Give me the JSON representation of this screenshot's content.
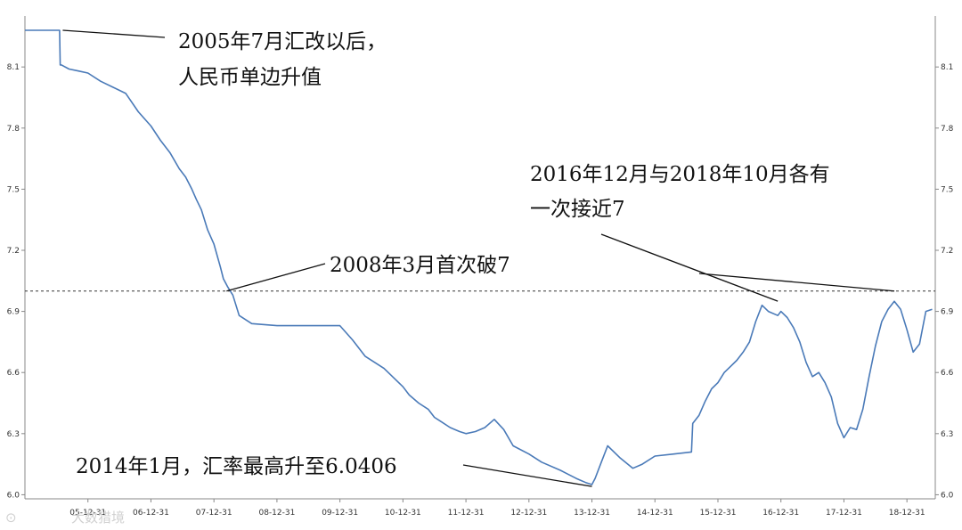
{
  "chart_data": {
    "type": "line",
    "series": [
      {
        "color": "#4a7ab8",
        "x": [
          2005.0,
          2005.55,
          2005.56,
          2005.58,
          2005.7,
          2005.85,
          2006.0,
          2006.2,
          2006.4,
          2006.6,
          2006.8,
          2007.0,
          2007.15,
          2007.3,
          2007.45,
          2007.55,
          2007.65,
          2007.72,
          2007.8,
          2007.9,
          2008.0,
          2008.1,
          2008.15,
          2008.22,
          2008.3,
          2008.4,
          2008.6,
          2009.0,
          2009.5,
          2009.9,
          2010.0,
          2010.2,
          2010.4,
          2010.7,
          2011.0,
          2011.1,
          2011.25,
          2011.4,
          2011.5,
          2011.6,
          2011.75,
          2011.9,
          2012.0,
          2012.15,
          2012.3,
          2012.45,
          2012.6,
          2012.75,
          2013.0,
          2013.2,
          2013.5,
          2013.75,
          2013.9,
          2014.0,
          2014.05,
          2014.15,
          2014.25,
          2014.45,
          2014.65,
          2014.8,
          2015.0,
          2015.3,
          2015.58,
          2015.6,
          2015.7,
          2015.8,
          2015.9,
          2016.0,
          2016.1,
          2016.2,
          2016.3,
          2016.4,
          2016.5,
          2016.6,
          2016.7,
          2016.8,
          2016.95,
          2017.0,
          2017.1,
          2017.2,
          2017.3,
          2017.4,
          2017.5,
          2017.6,
          2017.7,
          2017.8,
          2017.9,
          2018.0,
          2018.1,
          2018.2,
          2018.3,
          2018.4,
          2018.5,
          2018.6,
          2018.7,
          2018.8,
          2018.9,
          2019.0,
          2019.1,
          2019.2,
          2019.3,
          2019.4
        ],
        "y": [
          8.28,
          8.28,
          8.11,
          8.11,
          8.09,
          8.08,
          8.07,
          8.03,
          8.0,
          7.97,
          7.88,
          7.81,
          7.74,
          7.68,
          7.6,
          7.56,
          7.5,
          7.45,
          7.4,
          7.3,
          7.23,
          7.12,
          7.06,
          7.02,
          6.98,
          6.88,
          6.84,
          6.83,
          6.83,
          6.83,
          6.83,
          6.76,
          6.68,
          6.62,
          6.53,
          6.49,
          6.45,
          6.42,
          6.38,
          6.36,
          6.33,
          6.31,
          6.3,
          6.31,
          6.33,
          6.37,
          6.32,
          6.24,
          6.2,
          6.16,
          6.12,
          6.08,
          6.06,
          6.05,
          6.08,
          6.16,
          6.24,
          6.18,
          6.13,
          6.15,
          6.19,
          6.2,
          6.21,
          6.35,
          6.39,
          6.46,
          6.52,
          6.55,
          6.6,
          6.63,
          6.66,
          6.7,
          6.75,
          6.85,
          6.93,
          6.9,
          6.88,
          6.9,
          6.87,
          6.82,
          6.75,
          6.65,
          6.58,
          6.6,
          6.55,
          6.48,
          6.35,
          6.28,
          6.33,
          6.32,
          6.42,
          6.58,
          6.73,
          6.85,
          6.91,
          6.95,
          6.91,
          6.81,
          6.7,
          6.74,
          6.9,
          6.91
        ]
      }
    ],
    "xtick_labels": [
      "05-12-31",
      "06-12-31",
      "07-12-31",
      "08-12-31",
      "09-12-31",
      "10-12-31",
      "11-12-31",
      "12-12-31",
      "13-12-31",
      "14-12-31",
      "15-12-31",
      "16-12-31",
      "17-12-31",
      "18-12-31"
    ],
    "xtick_values": [
      2006.0,
      2007.0,
      2008.0,
      2009.0,
      2010.0,
      2011.0,
      2012.0,
      2013.0,
      2014.0,
      2015.0,
      2016.0,
      2017.0,
      2018.0,
      2019.0
    ],
    "xlim": [
      2005.0,
      2019.45
    ],
    "yticks": [
      6.0,
      6.3,
      6.6,
      6.9,
      7.2,
      7.5,
      7.8,
      8.1
    ],
    "ylim": [
      5.98,
      8.35
    ],
    "reference_line": {
      "y": 7.0,
      "style": "dashed",
      "color": "#333333"
    },
    "grid": false,
    "legend": "none",
    "annotations": [
      {
        "lines": [
          "2005年7月汇改以后，",
          "人民币单边升值"
        ],
        "point": [
          2005.6,
          8.28
        ]
      },
      {
        "lines": [
          "2008年3月首次破7"
        ],
        "point": [
          2008.2,
          7.0
        ]
      },
      {
        "lines": [
          "2016年12月与2018年10月各有",
          "一次接近7"
        ],
        "points": [
          [
            2016.95,
            6.95
          ],
          [
            2018.8,
            7.0
          ]
        ]
      },
      {
        "lines": [
          "2014年1月，汇率最高升至6.0406"
        ],
        "point": [
          2014.0,
          6.0406
        ]
      }
    ],
    "watermark": "大数猎境"
  }
}
